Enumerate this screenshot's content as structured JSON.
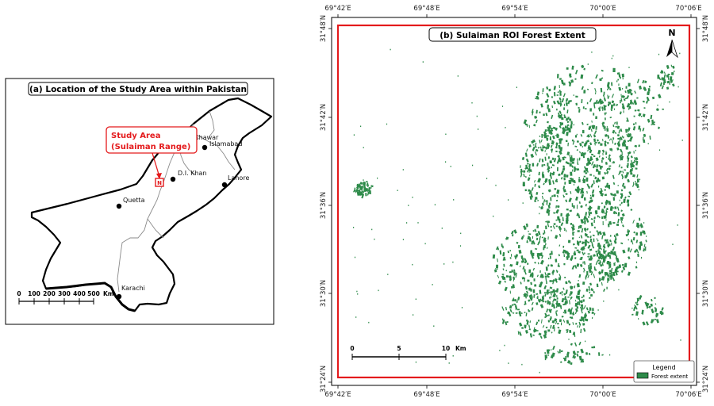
{
  "panel_a": {
    "title": "(a) Location of the Study Area within Pakistan",
    "study_area_label": [
      "Study Area",
      "(Sulaiman Range)"
    ],
    "roi_marker": "N",
    "cities": [
      {
        "name": "Peshawar"
      },
      {
        "name": "Islamabad"
      },
      {
        "name": "D.I. Khan"
      },
      {
        "name": "Lahore"
      },
      {
        "name": "Quetta"
      },
      {
        "name": "Karachi"
      }
    ],
    "scale_bar": {
      "ticks": [
        "0",
        "100",
        "200",
        "300",
        "400",
        "500"
      ],
      "unit": "Km"
    },
    "colors": {
      "highlight": "#e41a1c",
      "border": "#000000",
      "province_lines": "#888888"
    }
  },
  "panel_b": {
    "title": "(b) Sulaiman ROI Forest Extent",
    "north_label": "N",
    "lon_ticks": [
      "69°42′E",
      "69°48′E",
      "69°54′E",
      "70°00′E",
      "70°06′E"
    ],
    "lat_ticks": [
      "31°48′N",
      "31°42′N",
      "31°36′N",
      "31°30′N",
      "31°24′N"
    ],
    "scale_bar": {
      "ticks": [
        "0",
        "5",
        "10"
      ],
      "unit": "Km"
    },
    "legend": {
      "title": "Legend",
      "items": [
        {
          "label": "Forest extent",
          "color": "#2e8b4a"
        }
      ]
    },
    "colors": {
      "roi_border": "#e41a1c",
      "forest": "#2e8b4a"
    }
  }
}
